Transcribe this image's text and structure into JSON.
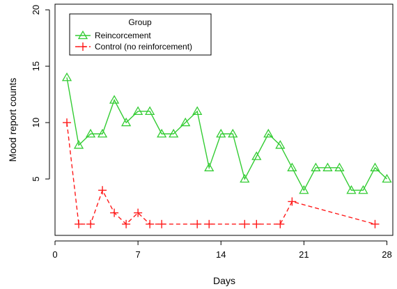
{
  "chart_data": {
    "type": "line",
    "xlabel": "Days",
    "ylabel": "Mood report counts",
    "xlim": [
      0,
      28.5
    ],
    "ylim": [
      0,
      20.5
    ],
    "xticks": [
      0,
      7,
      14,
      21,
      28
    ],
    "yticks": [
      5,
      10,
      15,
      20
    ],
    "grid": false,
    "legend": {
      "title": "Group",
      "placement": "top-left"
    },
    "series": [
      {
        "name": "Reincorcement",
        "color": "#33cc33",
        "dash": "solid",
        "marker": "triangle",
        "x": [
          1,
          2,
          3,
          4,
          5,
          6,
          7,
          8,
          9,
          10,
          11,
          12,
          13,
          14,
          15,
          16,
          17,
          18,
          19,
          20,
          21,
          22,
          23,
          24,
          25,
          26,
          27,
          28
        ],
        "y": [
          14,
          8,
          9,
          9,
          12,
          10,
          11,
          11,
          9,
          9,
          10,
          11,
          6,
          9,
          9,
          5,
          7,
          9,
          8,
          6,
          4,
          6,
          6,
          6,
          4,
          4,
          6,
          5
        ]
      },
      {
        "name": "Control (no reinforcement)",
        "color": "#ff1a1a",
        "dash": "dashed",
        "marker": "plus",
        "x": [
          1,
          2,
          3,
          4,
          5,
          6,
          7,
          8,
          9,
          12,
          13,
          16,
          17,
          19,
          20,
          27
        ],
        "y": [
          10,
          1,
          1,
          4,
          2,
          1,
          2,
          1,
          1,
          1,
          1,
          1,
          1,
          1,
          3,
          1
        ]
      }
    ]
  }
}
